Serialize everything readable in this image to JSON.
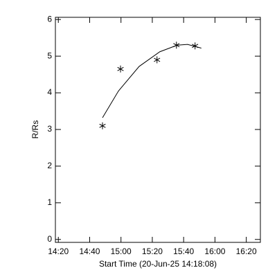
{
  "chart_data": {
    "type": "scatter",
    "xlabel": "Start Time (20-Jun-25 14:18:08)",
    "ylabel": "R/Rs",
    "series": [
      {
        "type": "scatter",
        "marker": "asterisk",
        "color": "#000000",
        "x": [
          888.2,
          899.7,
          923.0,
          935.4,
          947.3
        ],
        "values": [
          3.1,
          4.65,
          4.9,
          5.3,
          5.28
        ]
      },
      {
        "type": "line",
        "color": "#000000",
        "x": [
          888.2,
          898.4,
          911.6,
          924.8,
          935.9,
          942.5,
          951.3
        ],
        "values": [
          3.32,
          4.05,
          4.72,
          5.12,
          5.3,
          5.32,
          5.22
        ]
      }
    ],
    "xlim": [
      858.13,
      989
    ],
    "xticks": [
      {
        "value": 860,
        "label": "14:20"
      },
      {
        "value": 880,
        "label": "14:40"
      },
      {
        "value": 900,
        "label": "15:00"
      },
      {
        "value": 920,
        "label": "15:20"
      },
      {
        "value": 940,
        "label": "15:40"
      },
      {
        "value": 960,
        "label": "16:00"
      },
      {
        "value": 980,
        "label": "16:20"
      }
    ],
    "ylim": [
      -0.08,
      6.06
    ],
    "yticks": [
      0,
      1,
      2,
      3,
      4,
      5,
      6
    ],
    "grid": false
  }
}
